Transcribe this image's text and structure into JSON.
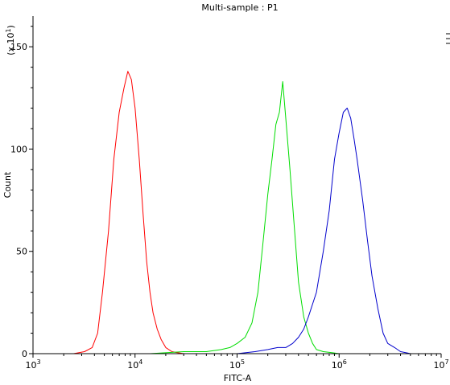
{
  "chart_data": {
    "type": "line",
    "title": "Multi-sample : P1",
    "xlabel": "FITC-A",
    "ylabel": "Count",
    "y_multiplier_label": "(x 10",
    "y_multiplier_exponent": "1",
    "x_scale": "log",
    "xlim": [
      1000,
      10000000
    ],
    "ylim": [
      0,
      165
    ],
    "grid": false,
    "x_ticks": [
      {
        "base": "10",
        "exp": "3",
        "value": 1000
      },
      {
        "base": "10",
        "exp": "4",
        "value": 10000
      },
      {
        "base": "10",
        "exp": "5",
        "value": 100000
      },
      {
        "base": "10",
        "exp": "6",
        "value": 1000000
      },
      {
        "base": "10",
        "exp": "7",
        "value": 10000000
      }
    ],
    "y_ticks": [
      0,
      50,
      100,
      150
    ],
    "series": [
      {
        "color": "#ff0000",
        "x": [
          2500,
          3200,
          3800,
          4300,
          4800,
          5500,
          6200,
          7000,
          7800,
          8500,
          9200,
          10000,
          11000,
          12000,
          13000,
          14000,
          15000,
          16500,
          18000,
          20000,
          23000,
          26000,
          30000
        ],
        "y": [
          0,
          1,
          3,
          10,
          30,
          60,
          95,
          118,
          130,
          138,
          134,
          120,
          95,
          68,
          45,
          30,
          20,
          12,
          7,
          3,
          1,
          0.5,
          0
        ]
      },
      {
        "color": "#00dd00",
        "x": [
          14000,
          30000,
          50000,
          70000,
          85000,
          100000,
          120000,
          140000,
          160000,
          180000,
          200000,
          220000,
          240000,
          260000,
          280000,
          300000,
          330000,
          360000,
          400000,
          450000,
          500000,
          550000,
          600000,
          700000,
          850000,
          1000000
        ],
        "y": [
          0,
          1,
          1,
          2,
          3,
          5,
          8,
          15,
          30,
          55,
          78,
          95,
          112,
          118,
          133,
          115,
          90,
          65,
          35,
          18,
          10,
          5,
          2,
          1,
          0.5,
          0
        ]
      },
      {
        "color": "#0000cc",
        "x": [
          100000,
          150000,
          200000,
          250000,
          300000,
          350000,
          400000,
          450000,
          500000,
          600000,
          700000,
          800000,
          900000,
          1000000,
          1100000,
          1200000,
          1300000,
          1400000,
          1500000,
          1700000,
          1900000,
          2100000,
          2400000,
          2700000,
          3000000,
          3500000,
          4000000,
          4500000,
          5000000
        ],
        "y": [
          0,
          1,
          2,
          3,
          3,
          5,
          8,
          12,
          18,
          30,
          50,
          70,
          95,
          108,
          118,
          120,
          115,
          105,
          95,
          75,
          55,
          38,
          22,
          10,
          5,
          3,
          1,
          0.5,
          0
        ]
      }
    ]
  }
}
